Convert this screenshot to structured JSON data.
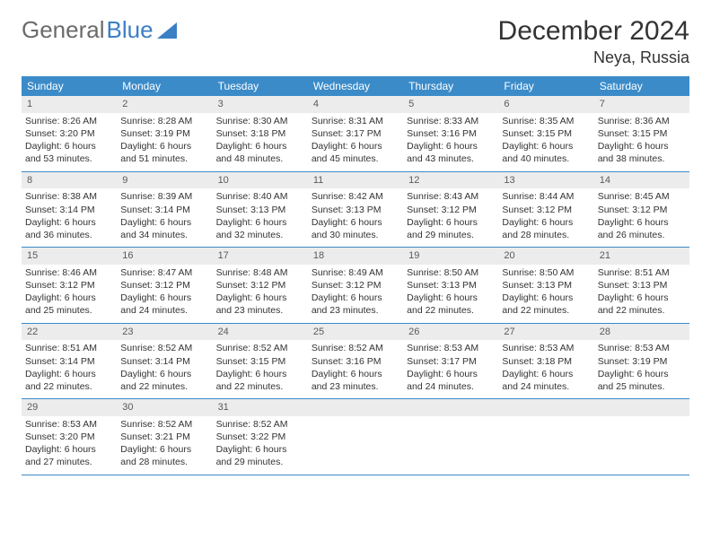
{
  "brand": {
    "word1": "General",
    "word2": "Blue"
  },
  "title": "December 2024",
  "location": "Neya, Russia",
  "colors": {
    "header_bg": "#3b8bc9",
    "header_text": "#ffffff",
    "daynum_bg": "#ececec",
    "border": "#3b8bc9",
    "text": "#333333",
    "brand_gray": "#6b6b6b",
    "brand_blue": "#3b7fc4"
  },
  "day_names": [
    "Sunday",
    "Monday",
    "Tuesday",
    "Wednesday",
    "Thursday",
    "Friday",
    "Saturday"
  ],
  "weeks": [
    [
      {
        "n": "1",
        "sr": "8:26 AM",
        "ss": "3:20 PM",
        "dl": "6 hours and 53 minutes."
      },
      {
        "n": "2",
        "sr": "8:28 AM",
        "ss": "3:19 PM",
        "dl": "6 hours and 51 minutes."
      },
      {
        "n": "3",
        "sr": "8:30 AM",
        "ss": "3:18 PM",
        "dl": "6 hours and 48 minutes."
      },
      {
        "n": "4",
        "sr": "8:31 AM",
        "ss": "3:17 PM",
        "dl": "6 hours and 45 minutes."
      },
      {
        "n": "5",
        "sr": "8:33 AM",
        "ss": "3:16 PM",
        "dl": "6 hours and 43 minutes."
      },
      {
        "n": "6",
        "sr": "8:35 AM",
        "ss": "3:15 PM",
        "dl": "6 hours and 40 minutes."
      },
      {
        "n": "7",
        "sr": "8:36 AM",
        "ss": "3:15 PM",
        "dl": "6 hours and 38 minutes."
      }
    ],
    [
      {
        "n": "8",
        "sr": "8:38 AM",
        "ss": "3:14 PM",
        "dl": "6 hours and 36 minutes."
      },
      {
        "n": "9",
        "sr": "8:39 AM",
        "ss": "3:14 PM",
        "dl": "6 hours and 34 minutes."
      },
      {
        "n": "10",
        "sr": "8:40 AM",
        "ss": "3:13 PM",
        "dl": "6 hours and 32 minutes."
      },
      {
        "n": "11",
        "sr": "8:42 AM",
        "ss": "3:13 PM",
        "dl": "6 hours and 30 minutes."
      },
      {
        "n": "12",
        "sr": "8:43 AM",
        "ss": "3:12 PM",
        "dl": "6 hours and 29 minutes."
      },
      {
        "n": "13",
        "sr": "8:44 AM",
        "ss": "3:12 PM",
        "dl": "6 hours and 28 minutes."
      },
      {
        "n": "14",
        "sr": "8:45 AM",
        "ss": "3:12 PM",
        "dl": "6 hours and 26 minutes."
      }
    ],
    [
      {
        "n": "15",
        "sr": "8:46 AM",
        "ss": "3:12 PM",
        "dl": "6 hours and 25 minutes."
      },
      {
        "n": "16",
        "sr": "8:47 AM",
        "ss": "3:12 PM",
        "dl": "6 hours and 24 minutes."
      },
      {
        "n": "17",
        "sr": "8:48 AM",
        "ss": "3:12 PM",
        "dl": "6 hours and 23 minutes."
      },
      {
        "n": "18",
        "sr": "8:49 AM",
        "ss": "3:12 PM",
        "dl": "6 hours and 23 minutes."
      },
      {
        "n": "19",
        "sr": "8:50 AM",
        "ss": "3:13 PM",
        "dl": "6 hours and 22 minutes."
      },
      {
        "n": "20",
        "sr": "8:50 AM",
        "ss": "3:13 PM",
        "dl": "6 hours and 22 minutes."
      },
      {
        "n": "21",
        "sr": "8:51 AM",
        "ss": "3:13 PM",
        "dl": "6 hours and 22 minutes."
      }
    ],
    [
      {
        "n": "22",
        "sr": "8:51 AM",
        "ss": "3:14 PM",
        "dl": "6 hours and 22 minutes."
      },
      {
        "n": "23",
        "sr": "8:52 AM",
        "ss": "3:14 PM",
        "dl": "6 hours and 22 minutes."
      },
      {
        "n": "24",
        "sr": "8:52 AM",
        "ss": "3:15 PM",
        "dl": "6 hours and 22 minutes."
      },
      {
        "n": "25",
        "sr": "8:52 AM",
        "ss": "3:16 PM",
        "dl": "6 hours and 23 minutes."
      },
      {
        "n": "26",
        "sr": "8:53 AM",
        "ss": "3:17 PM",
        "dl": "6 hours and 24 minutes."
      },
      {
        "n": "27",
        "sr": "8:53 AM",
        "ss": "3:18 PM",
        "dl": "6 hours and 24 minutes."
      },
      {
        "n": "28",
        "sr": "8:53 AM",
        "ss": "3:19 PM",
        "dl": "6 hours and 25 minutes."
      }
    ],
    [
      {
        "n": "29",
        "sr": "8:53 AM",
        "ss": "3:20 PM",
        "dl": "6 hours and 27 minutes."
      },
      {
        "n": "30",
        "sr": "8:52 AM",
        "ss": "3:21 PM",
        "dl": "6 hours and 28 minutes."
      },
      {
        "n": "31",
        "sr": "8:52 AM",
        "ss": "3:22 PM",
        "dl": "6 hours and 29 minutes."
      },
      null,
      null,
      null,
      null
    ]
  ],
  "labels": {
    "sunrise": "Sunrise:",
    "sunset": "Sunset:",
    "daylight": "Daylight:"
  }
}
